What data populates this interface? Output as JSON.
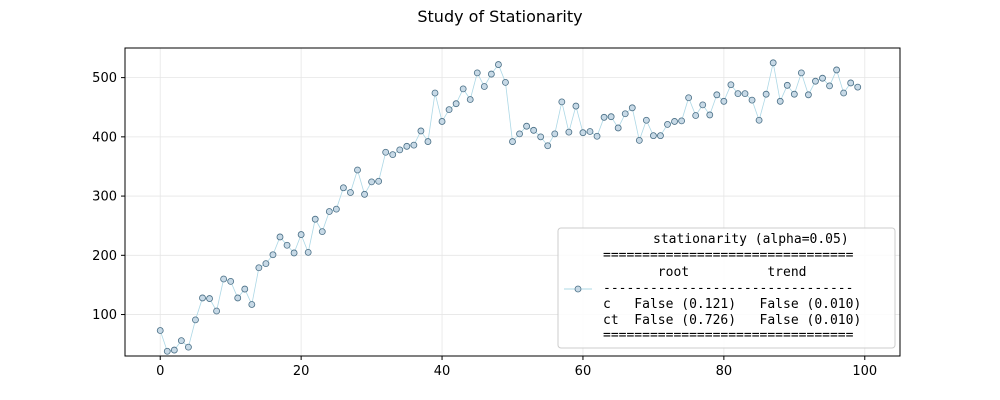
{
  "chart_data": {
    "type": "line",
    "title": "Study of Stationarity",
    "xlabel": "",
    "ylabel": "",
    "xlim": [
      -5,
      105
    ],
    "ylim": [
      30,
      550
    ],
    "xticks": [
      0,
      20,
      40,
      60,
      80,
      100
    ],
    "yticks": [
      100,
      200,
      300,
      400,
      500
    ],
    "grid": true,
    "legend_position": "lower-right",
    "series": [
      {
        "color": "#add8e6",
        "marker_edge": "#4a6f86",
        "x": [
          0,
          1,
          2,
          3,
          4,
          5,
          6,
          7,
          8,
          9,
          10,
          11,
          12,
          13,
          14,
          15,
          16,
          17,
          18,
          19,
          20,
          21,
          22,
          23,
          24,
          25,
          26,
          27,
          28,
          29,
          30,
          31,
          32,
          33,
          34,
          35,
          36,
          37,
          38,
          39,
          40,
          41,
          42,
          43,
          44,
          45,
          46,
          47,
          48,
          49,
          50,
          51,
          52,
          53,
          54,
          55,
          56,
          57,
          58,
          59,
          60,
          61,
          62,
          63,
          64,
          65,
          66,
          67,
          68,
          69,
          70,
          71,
          72,
          73,
          74,
          75,
          76,
          77,
          78,
          79,
          80,
          81,
          82,
          83,
          84,
          85,
          86,
          87,
          88,
          89,
          90,
          91,
          92,
          93,
          94,
          95,
          96,
          97,
          98,
          99
        ],
        "values": [
          73,
          38,
          40,
          56,
          45,
          91,
          128,
          127,
          106,
          160,
          156,
          128,
          143,
          117,
          179,
          186,
          201,
          231,
          217,
          204,
          235,
          205,
          261,
          240,
          274,
          278,
          314,
          306,
          344,
          303,
          324,
          325,
          374,
          370,
          378,
          384,
          386,
          410,
          392,
          474,
          426,
          446,
          456,
          481,
          463,
          508,
          485,
          506,
          522,
          492,
          392,
          405,
          418,
          411,
          400,
          385,
          405,
          459,
          408,
          452,
          407,
          409,
          401,
          433,
          434,
          415,
          439,
          449,
          394,
          428,
          402,
          402,
          421,
          426,
          427,
          466,
          436,
          454,
          437,
          471,
          460,
          488,
          473,
          473,
          462,
          428,
          472,
          525,
          460,
          487,
          472,
          508,
          471,
          494,
          499,
          486,
          513,
          474,
          491,
          484
        ]
      }
    ],
    "legend": {
      "title": "stationarity (alpha=0.05)",
      "rule": "================================",
      "dash": "--------------------------------",
      "header": "       root          trend",
      "rows": [
        "c   False (0.121)   False (0.010)",
        "ct  False (0.726)   False (0.010)"
      ]
    }
  }
}
